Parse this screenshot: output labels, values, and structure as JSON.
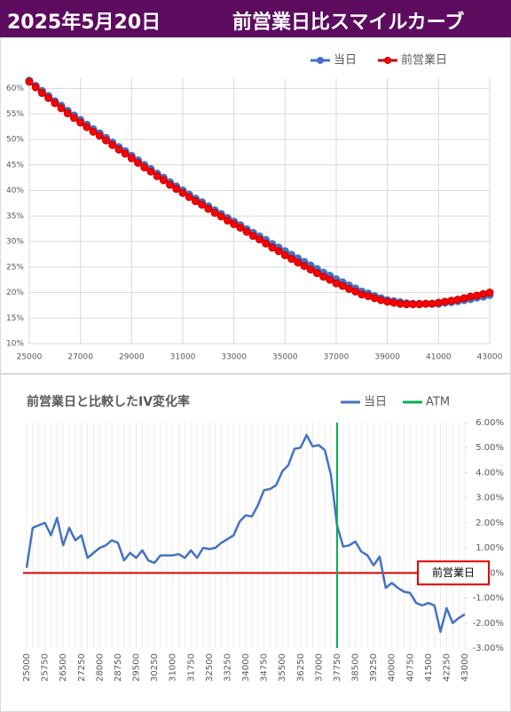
{
  "header": {
    "date": "2025年5月20日",
    "title": "前営業日比スマイルカーブ"
  },
  "chart_data": [
    {
      "type": "line",
      "x": [
        25000,
        25250,
        25500,
        25750,
        26000,
        26250,
        26500,
        26750,
        27000,
        27250,
        27500,
        27750,
        28000,
        28250,
        28500,
        28750,
        29000,
        29250,
        29500,
        29750,
        30000,
        30250,
        30500,
        30750,
        31000,
        31250,
        31500,
        31750,
        32000,
        32250,
        32500,
        32750,
        33000,
        33250,
        33500,
        33750,
        34000,
        34250,
        34500,
        34750,
        35000,
        35250,
        35500,
        35750,
        36000,
        36250,
        36500,
        36750,
        37000,
        37250,
        37500,
        37750,
        38000,
        38250,
        38500,
        38750,
        39000,
        39250,
        39500,
        39750,
        40000,
        40250,
        40500,
        40750,
        41000,
        41250,
        41500,
        41750,
        42000,
        42250,
        42500,
        42750,
        43000
      ],
      "series": [
        {
          "name": "当日",
          "color": "#4472c4",
          "stroke": "#4472c4",
          "values": [
            61.5,
            60.5,
            59.5,
            58.5,
            57.5,
            56.6,
            55.6,
            54.7,
            53.8,
            52.9,
            52.0,
            51.2,
            50.3,
            49.4,
            48.5,
            47.7,
            46.8,
            45.9,
            45.0,
            44.2,
            43.3,
            42.5,
            41.6,
            40.8,
            40.0,
            39.2,
            38.4,
            37.7,
            36.9,
            36.1,
            35.4,
            34.6,
            33.9,
            33.2,
            32.4,
            31.7,
            31.0,
            30.3,
            29.5,
            28.8,
            28.1,
            27.4,
            26.7,
            26.0,
            25.3,
            24.6,
            23.9,
            23.3,
            22.6,
            22.0,
            21.4,
            20.8,
            20.2,
            19.8,
            19.3,
            18.9,
            18.5,
            18.3,
            18.1,
            17.9,
            17.8,
            17.8,
            17.8,
            17.8,
            17.8,
            18.0,
            18.1,
            18.3,
            18.5,
            18.7,
            19.0,
            19.2,
            19.5
          ]
        },
        {
          "name": "前営業日",
          "color": "#ff0000",
          "stroke": "#c00000",
          "values": [
            61.3,
            60.2,
            59.1,
            58.1,
            57.1,
            56.1,
            55.1,
            54.2,
            53.3,
            52.4,
            51.5,
            50.7,
            49.8,
            48.9,
            48.0,
            47.2,
            46.3,
            45.4,
            44.5,
            43.7,
            42.8,
            42.0,
            41.1,
            40.3,
            39.5,
            38.7,
            37.9,
            37.2,
            36.4,
            35.6,
            34.9,
            34.1,
            33.4,
            32.7,
            31.9,
            31.1,
            30.4,
            29.6,
            28.8,
            28.1,
            27.3,
            26.6,
            25.9,
            25.2,
            24.5,
            23.8,
            23.1,
            22.5,
            21.8,
            21.3,
            20.7,
            20.2,
            19.6,
            19.3,
            18.9,
            18.5,
            18.2,
            18.0,
            17.8,
            17.7,
            17.7,
            17.7,
            17.8,
            17.8,
            18.0,
            18.2,
            18.4,
            18.6,
            18.9,
            19.2,
            19.4,
            19.7,
            20.0
          ]
        }
      ],
      "xlim": [
        25000,
        43000
      ],
      "xticks": [
        25000,
        27000,
        29000,
        31000,
        33000,
        35000,
        37000,
        39000,
        41000,
        43000
      ],
      "ylim": [
        10,
        62
      ],
      "yticks": [
        {
          "value": 10,
          "label": "10%"
        },
        {
          "value": 15,
          "label": "15%"
        },
        {
          "value": 20,
          "label": "20%"
        },
        {
          "value": 25,
          "label": "25%"
        },
        {
          "value": 30,
          "label": "30%"
        },
        {
          "value": 35,
          "label": "35%"
        },
        {
          "value": 40,
          "label": "40%"
        },
        {
          "value": 45,
          "label": "45%"
        },
        {
          "value": 50,
          "label": "50%"
        },
        {
          "value": 55,
          "label": "55%"
        },
        {
          "value": 60,
          "label": "60%"
        }
      ],
      "grid": true,
      "legend": "top"
    },
    {
      "type": "line",
      "title": "前営業日と比較したIV変化率",
      "categories": [
        "25000",
        null,
        null,
        "25750",
        null,
        null,
        "26500",
        null,
        null,
        "27250",
        null,
        null,
        "28000",
        null,
        null,
        "28750",
        null,
        null,
        "29500",
        null,
        null,
        "30250",
        null,
        null,
        "31000",
        null,
        null,
        "31750",
        null,
        null,
        "32500",
        null,
        null,
        "33250",
        null,
        null,
        "34000",
        null,
        null,
        "34750",
        null,
        null,
        "35500",
        null,
        null,
        "36250",
        null,
        null,
        "37000",
        null,
        null,
        "37750",
        null,
        null,
        "38500",
        null,
        null,
        "39250",
        null,
        null,
        "40000",
        null,
        null,
        "40750",
        null,
        null,
        "41500",
        null,
        null,
        "42250",
        null,
        null,
        "43000"
      ],
      "series": [
        {
          "name": "当日",
          "color": "#4472c4",
          "values": [
            0.2,
            1.8,
            1.9,
            2.0,
            1.5,
            2.2,
            1.1,
            1.8,
            1.3,
            1.5,
            0.6,
            0.8,
            1.0,
            1.1,
            1.3,
            1.2,
            0.5,
            0.8,
            0.6,
            0.9,
            0.5,
            0.4,
            0.7,
            0.7,
            0.7,
            0.75,
            0.6,
            0.9,
            0.6,
            1.0,
            0.95,
            1.0,
            1.2,
            1.35,
            1.5,
            2.05,
            2.3,
            2.25,
            2.7,
            3.3,
            3.35,
            3.5,
            4.05,
            4.3,
            4.95,
            5.0,
            5.5,
            5.05,
            5.1,
            4.9,
            3.9,
            1.9,
            1.05,
            1.1,
            1.25,
            0.85,
            0.7,
            0.3,
            0.65,
            -0.6,
            -0.4,
            -0.6,
            -0.75,
            -0.8,
            -1.2,
            -1.3,
            -1.2,
            -1.3,
            -2.35,
            -1.4,
            -2.0,
            -1.8,
            -1.65
          ]
        },
        {
          "name": "ATM",
          "color": "#00b050",
          "at": "37750"
        }
      ],
      "ylim": [
        -3,
        6
      ],
      "yticks": [
        {
          "value": 6,
          "label": "6.00%"
        },
        {
          "value": 5,
          "label": "5.00%"
        },
        {
          "value": 4,
          "label": "4.00%"
        },
        {
          "value": 3,
          "label": "3.00%"
        },
        {
          "value": 2,
          "label": "2.00%"
        },
        {
          "value": 1,
          "label": "1.00%"
        },
        {
          "value": 0,
          "label": "0%"
        },
        {
          "value": -1,
          "label": "-1.00%"
        },
        {
          "value": -2,
          "label": "-2.00%"
        },
        {
          "value": -3,
          "label": "-3.00%"
        }
      ],
      "reference_line": {
        "value": 0,
        "label": "前営業日",
        "color": "#e00000"
      },
      "grid": true,
      "legend": "top-right",
      "yaxis_side": "right"
    }
  ]
}
